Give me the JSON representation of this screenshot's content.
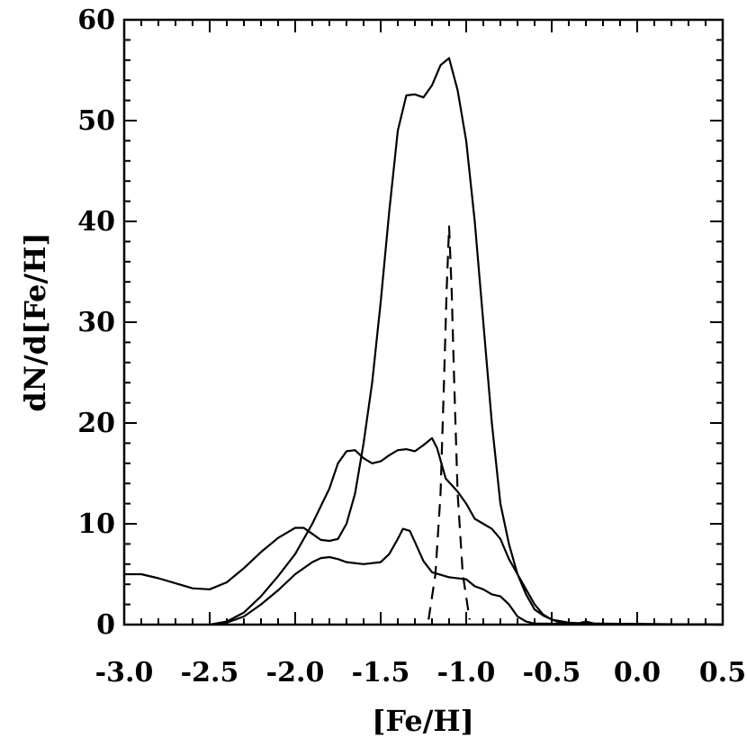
{
  "chart_data": {
    "type": "line",
    "xlabel": "[Fe/H]",
    "ylabel": "dN/d[Fe/H]",
    "xlim": [
      -3.0,
      0.5
    ],
    "ylim": [
      0,
      60
    ],
    "x_ticks": [
      -3.0,
      -2.5,
      -2.0,
      -1.5,
      -1.0,
      -0.5,
      0.0,
      0.5
    ],
    "x_tick_labels": [
      "-3.0",
      "-2.5",
      "-2.0",
      "-1.5",
      "-1.0",
      "-0.5",
      "0.0",
      "0.5"
    ],
    "y_ticks": [
      0,
      10,
      20,
      30,
      40,
      50,
      60
    ],
    "y_tick_labels": [
      "0",
      "10",
      "20",
      "30",
      "40",
      "50",
      "60"
    ],
    "grid": false,
    "series": [
      {
        "style": "solid",
        "points": [
          [
            -3.0,
            5.0
          ],
          [
            -2.9,
            5.0
          ],
          [
            -2.8,
            4.6
          ],
          [
            -2.7,
            4.1
          ],
          [
            -2.6,
            3.6
          ],
          [
            -2.5,
            3.5
          ],
          [
            -2.4,
            4.2
          ],
          [
            -2.3,
            5.6
          ],
          [
            -2.2,
            7.2
          ],
          [
            -2.1,
            8.6
          ],
          [
            -2.0,
            9.6
          ],
          [
            -1.95,
            9.6
          ],
          [
            -1.9,
            9.0
          ],
          [
            -1.85,
            8.4
          ],
          [
            -1.8,
            8.3
          ],
          [
            -1.75,
            8.5
          ],
          [
            -1.7,
            10.0
          ],
          [
            -1.65,
            13.0
          ],
          [
            -1.6,
            18.0
          ],
          [
            -1.55,
            24.0
          ],
          [
            -1.5,
            32.0
          ],
          [
            -1.45,
            41.0
          ],
          [
            -1.4,
            49.0
          ],
          [
            -1.35,
            52.5
          ],
          [
            -1.3,
            52.6
          ],
          [
            -1.25,
            52.3
          ],
          [
            -1.2,
            53.5
          ],
          [
            -1.15,
            55.5
          ],
          [
            -1.1,
            56.2
          ],
          [
            -1.05,
            53.0
          ],
          [
            -1.0,
            48.0
          ],
          [
            -0.95,
            40.0
          ],
          [
            -0.9,
            30.0
          ],
          [
            -0.85,
            20.0
          ],
          [
            -0.8,
            12.0
          ],
          [
            -0.75,
            8.0
          ],
          [
            -0.7,
            5.0
          ],
          [
            -0.65,
            3.0
          ],
          [
            -0.6,
            1.5
          ],
          [
            -0.55,
            0.9
          ],
          [
            -0.5,
            0.5
          ],
          [
            -0.4,
            0.2
          ],
          [
            -0.3,
            0.1
          ],
          [
            0.5,
            0.0
          ]
        ]
      },
      {
        "style": "solid",
        "points": [
          [
            -2.5,
            0.0
          ],
          [
            -2.4,
            0.3
          ],
          [
            -2.3,
            1.2
          ],
          [
            -2.2,
            2.8
          ],
          [
            -2.1,
            4.8
          ],
          [
            -2.0,
            7.0
          ],
          [
            -1.9,
            10.0
          ],
          [
            -1.8,
            13.5
          ],
          [
            -1.75,
            16.0
          ],
          [
            -1.7,
            17.2
          ],
          [
            -1.65,
            17.3
          ],
          [
            -1.6,
            16.5
          ],
          [
            -1.55,
            16.0
          ],
          [
            -1.5,
            16.2
          ],
          [
            -1.45,
            16.8
          ],
          [
            -1.4,
            17.3
          ],
          [
            -1.35,
            17.4
          ],
          [
            -1.3,
            17.2
          ],
          [
            -1.25,
            17.8
          ],
          [
            -1.2,
            18.5
          ],
          [
            -1.17,
            17.5
          ],
          [
            -1.12,
            14.5
          ],
          [
            -1.05,
            13.2
          ],
          [
            -1.0,
            12.0
          ],
          [
            -0.95,
            10.5
          ],
          [
            -0.9,
            10.0
          ],
          [
            -0.85,
            9.5
          ],
          [
            -0.8,
            8.5
          ],
          [
            -0.75,
            6.5
          ],
          [
            -0.7,
            5.0
          ],
          [
            -0.65,
            3.5
          ],
          [
            -0.6,
            2.0
          ],
          [
            -0.55,
            1.0
          ],
          [
            -0.5,
            0.5
          ],
          [
            -0.45,
            0.2
          ],
          [
            -0.35,
            0.1
          ],
          [
            -0.3,
            0.3
          ],
          [
            -0.25,
            0.1
          ],
          [
            0.5,
            0.0
          ]
        ]
      },
      {
        "style": "solid",
        "points": [
          [
            -2.5,
            0.0
          ],
          [
            -2.4,
            0.2
          ],
          [
            -2.3,
            0.8
          ],
          [
            -2.2,
            2.0
          ],
          [
            -2.1,
            3.4
          ],
          [
            -2.0,
            5.0
          ],
          [
            -1.9,
            6.2
          ],
          [
            -1.85,
            6.6
          ],
          [
            -1.8,
            6.7
          ],
          [
            -1.75,
            6.5
          ],
          [
            -1.7,
            6.2
          ],
          [
            -1.6,
            6.0
          ],
          [
            -1.5,
            6.2
          ],
          [
            -1.45,
            7.0
          ],
          [
            -1.4,
            8.5
          ],
          [
            -1.37,
            9.5
          ],
          [
            -1.33,
            9.3
          ],
          [
            -1.3,
            8.2
          ],
          [
            -1.25,
            6.3
          ],
          [
            -1.2,
            5.2
          ],
          [
            -1.1,
            4.7
          ],
          [
            -1.0,
            4.5
          ],
          [
            -0.95,
            3.8
          ],
          [
            -0.9,
            3.5
          ],
          [
            -0.85,
            3.0
          ],
          [
            -0.8,
            2.8
          ],
          [
            -0.75,
            2.0
          ],
          [
            -0.7,
            0.8
          ],
          [
            -0.65,
            0.3
          ],
          [
            -0.6,
            0.1
          ],
          [
            0.5,
            0.0
          ]
        ]
      },
      {
        "style": "dashed",
        "points": [
          [
            -1.22,
            0.5
          ],
          [
            -1.18,
            5.0
          ],
          [
            -1.15,
            13.0
          ],
          [
            -1.13,
            24.0
          ],
          [
            -1.115,
            33.0
          ],
          [
            -1.1,
            39.5
          ],
          [
            -1.085,
            33.0
          ],
          [
            -1.07,
            24.0
          ],
          [
            -1.05,
            13.0
          ],
          [
            -1.02,
            5.0
          ],
          [
            -0.98,
            0.5
          ]
        ]
      }
    ]
  }
}
